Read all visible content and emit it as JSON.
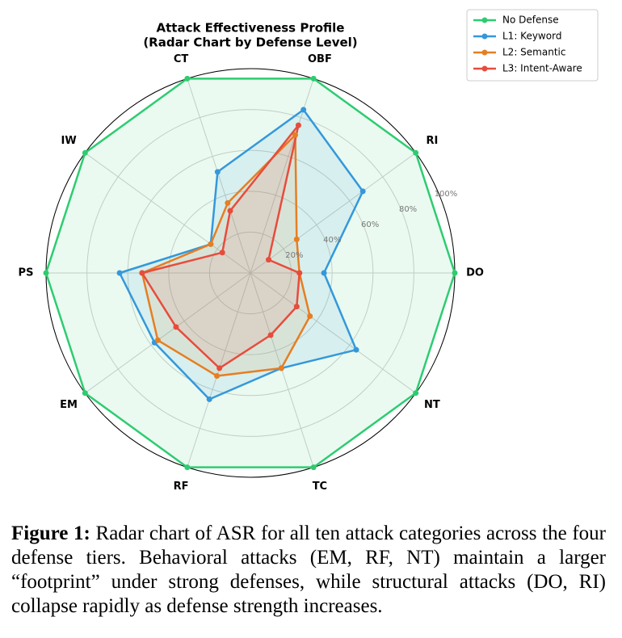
{
  "chart_data": {
    "type": "radar",
    "title": "Attack Effectiveness Profile",
    "subtitle": "(Radar Chart by Defense Level)",
    "categories": [
      "DO",
      "RI",
      "OBF",
      "CT",
      "IW",
      "PS",
      "EM",
      "RF",
      "TC",
      "NT"
    ],
    "rlim": [
      0,
      100
    ],
    "rticks": [
      {
        "value": 20,
        "label": "20%"
      },
      {
        "value": 40,
        "label": "40%"
      },
      {
        "value": 60,
        "label": "60%"
      },
      {
        "value": 80,
        "label": "80%"
      },
      {
        "value": 100,
        "label": "100%"
      }
    ],
    "grid": true,
    "legend": "upper right",
    "series": [
      {
        "name": "No Defense",
        "color": "#2ecc71",
        "values": [
          100,
          100,
          100,
          100,
          100,
          100,
          100,
          100,
          100,
          100
        ]
      },
      {
        "name": "L1: Keyword",
        "color": "#3498db",
        "values": [
          36,
          68,
          84,
          52,
          24,
          64,
          58,
          65,
          49,
          64
        ]
      },
      {
        "name": "L2: Semantic",
        "color": "#e67e22",
        "values": [
          24,
          28,
          71,
          36,
          24,
          53,
          56,
          53,
          49,
          36
        ]
      },
      {
        "name": "L3: Intent-Aware",
        "color": "#e74c3c",
        "values": [
          24,
          11,
          76,
          32,
          17,
          53,
          45,
          49,
          32,
          28
        ]
      }
    ]
  },
  "caption": {
    "label": "Figure 1:",
    "text": "Radar chart of ASR for all ten attack categories across the four defense tiers. Behavioral attacks (EM, RF, NT) maintain a larger “footprint” under strong defenses, while structural attacks (DO, RI) collapse rapidly as defense strength increases."
  }
}
